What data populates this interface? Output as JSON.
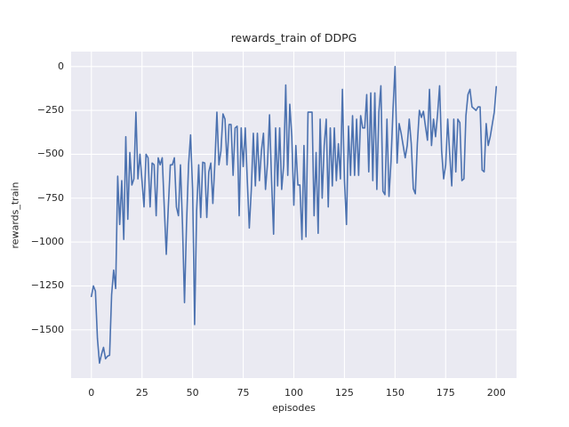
{
  "chart_data": {
    "type": "line",
    "title": "rewards_train of DDPG",
    "xlabel": "episodes",
    "ylabel": "rewards_train",
    "xlim": [
      -10,
      210
    ],
    "ylim": [
      -1775,
      85
    ],
    "grid": true,
    "legend": null,
    "style": "seaborn-darkgrid",
    "line_color": "#4c72b0",
    "axes_bg": "#eaeaf2",
    "grid_color": "#ffffff",
    "text_color": "#262626",
    "xticks": [
      {
        "label": "0",
        "value": 0
      },
      {
        "label": "25",
        "value": 25
      },
      {
        "label": "50",
        "value": 50
      },
      {
        "label": "75",
        "value": 75
      },
      {
        "label": "100",
        "value": 100
      },
      {
        "label": "125",
        "value": 125
      },
      {
        "label": "150",
        "value": 150
      },
      {
        "label": "175",
        "value": 175
      },
      {
        "label": "200",
        "value": 200
      }
    ],
    "yticks": [
      {
        "label": "0",
        "value": 0
      },
      {
        "label": "−250",
        "value": -250
      },
      {
        "label": "−500",
        "value": -500
      },
      {
        "label": "−750",
        "value": -750
      },
      {
        "label": "−1000",
        "value": -1000
      },
      {
        "label": "−1250",
        "value": -1250
      },
      {
        "label": "−1500",
        "value": -1500
      }
    ],
    "series": [
      {
        "name": "rewards_train",
        "x_mode": "index",
        "x_start": 0,
        "x_step": 1,
        "values": [
          -1310,
          -1250,
          -1280,
          -1550,
          -1690,
          -1640,
          -1600,
          -1665,
          -1650,
          -1645,
          -1300,
          -1160,
          -1265,
          -625,
          -900,
          -650,
          -985,
          -400,
          -870,
          -490,
          -675,
          -640,
          -260,
          -640,
          -500,
          -650,
          -800,
          -500,
          -520,
          -800,
          -550,
          -560,
          -850,
          -520,
          -560,
          -520,
          -800,
          -1070,
          -800,
          -560,
          -560,
          -520,
          -800,
          -850,
          -560,
          -900,
          -1345,
          -900,
          -560,
          -390,
          -700,
          -1470,
          -820,
          -560,
          -860,
          -545,
          -550,
          -860,
          -600,
          -550,
          -780,
          -550,
          -260,
          -560,
          -480,
          -270,
          -300,
          -560,
          -330,
          -330,
          -620,
          -350,
          -340,
          -850,
          -350,
          -570,
          -350,
          -645,
          -920,
          -700,
          -380,
          -680,
          -380,
          -650,
          -480,
          -380,
          -700,
          -550,
          -275,
          -650,
          -955,
          -350,
          -680,
          -350,
          -700,
          -560,
          -105,
          -620,
          -215,
          -400,
          -790,
          -450,
          -675,
          -675,
          -985,
          -450,
          -970,
          -260,
          -260,
          -260,
          -850,
          -490,
          -950,
          -300,
          -750,
          -450,
          -300,
          -800,
          -350,
          -680,
          -350,
          -650,
          -440,
          -640,
          -130,
          -650,
          -900,
          -340,
          -620,
          -280,
          -620,
          -300,
          -620,
          -280,
          -350,
          -350,
          -160,
          -600,
          -150,
          -650,
          -150,
          -700,
          -260,
          -110,
          -710,
          -730,
          -300,
          -740,
          -540,
          -240,
          0,
          -550,
          -325,
          -380,
          -450,
          -520,
          -450,
          -300,
          -440,
          -695,
          -725,
          -440,
          -250,
          -290,
          -255,
          -340,
          -420,
          -130,
          -450,
          -300,
          -400,
          -270,
          -110,
          -480,
          -640,
          -560,
          -300,
          -500,
          -680,
          -300,
          -600,
          -300,
          -320,
          -650,
          -640,
          -280,
          -160,
          -130,
          -230,
          -240,
          -250,
          -230,
          -230,
          -590,
          -600,
          -325,
          -450,
          -400,
          -330,
          -260,
          -115
        ]
      }
    ]
  }
}
